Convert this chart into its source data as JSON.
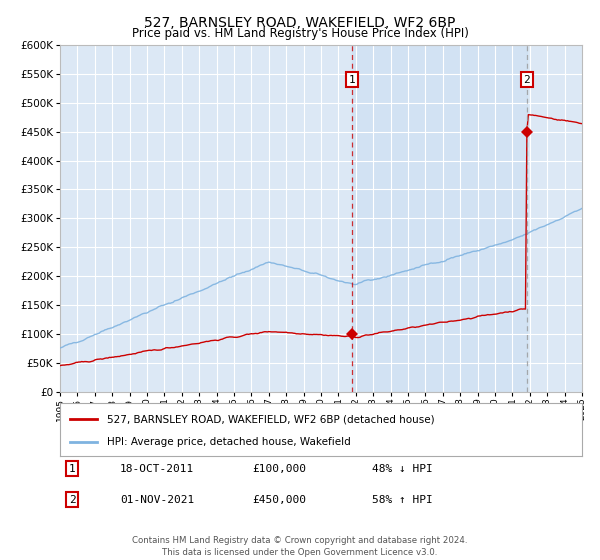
{
  "title": "527, BARNSLEY ROAD, WAKEFIELD, WF2 6BP",
  "subtitle": "Price paid vs. HM Land Registry's House Price Index (HPI)",
  "ylim": [
    0,
    600000
  ],
  "yticks": [
    0,
    50000,
    100000,
    150000,
    200000,
    250000,
    300000,
    350000,
    400000,
    450000,
    500000,
    550000,
    600000
  ],
  "ytick_labels": [
    "£0",
    "£50K",
    "£100K",
    "£150K",
    "£200K",
    "£250K",
    "£300K",
    "£350K",
    "£400K",
    "£450K",
    "£500K",
    "£550K",
    "£600K"
  ],
  "background_color": "#ffffff",
  "plot_bg_color": "#dce8f5",
  "grid_color": "#ffffff",
  "hpi_color": "#7fb3e0",
  "price_color": "#cc0000",
  "sale1_date": "18-OCT-2011",
  "sale1_price": 100000,
  "sale1_hpi_pct": "48% ↓ HPI",
  "sale2_date": "01-NOV-2021",
  "sale2_price": 450000,
  "sale2_hpi_pct": "58% ↑ HPI",
  "legend_line1": "527, BARNSLEY ROAD, WAKEFIELD, WF2 6BP (detached house)",
  "legend_line2": "HPI: Average price, detached house, Wakefield",
  "footer": "Contains HM Land Registry data © Crown copyright and database right 2024.\nThis data is licensed under the Open Government Licence v3.0.",
  "x_start_year": 1995,
  "x_end_year": 2025,
  "sale1_x": 2011.8,
  "sale2_x": 2021.83
}
